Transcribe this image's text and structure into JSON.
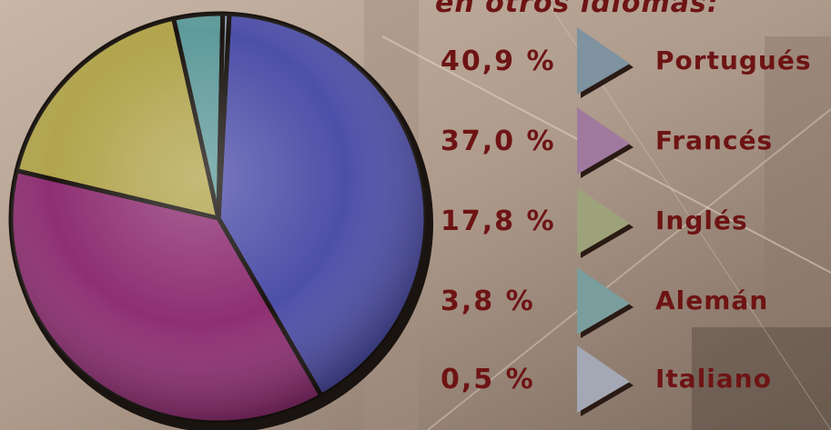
{
  "subtitle": "en otros idiomas:",
  "chart_data": {
    "type": "pie",
    "series": [
      {
        "name": "Portugués",
        "value": 40.9,
        "label": "40,9 %",
        "color": "#4e4fa8"
      },
      {
        "name": "Francés",
        "value": 37.0,
        "label": "37,0 %",
        "color": "#8e2f72"
      },
      {
        "name": "Inglés",
        "value": 17.8,
        "label": "17,8 %",
        "color": "#b1a44c"
      },
      {
        "name": "Alemán",
        "value": 3.8,
        "label": "3,8 %",
        "color": "#5f9a9a"
      },
      {
        "name": "Italiano",
        "value": 0.5,
        "label": "0,5 %",
        "color": "#8c9cab"
      }
    ],
    "legend_position": "right"
  },
  "legend": [
    {
      "pct": "40,9 %",
      "lang": "Portugués",
      "arrow_color": "#7e92a0"
    },
    {
      "pct": "37,0 %",
      "lang": "Francés",
      "arrow_color": "#a07a9e"
    },
    {
      "pct": "17,8 %",
      "lang": "Inglés",
      "arrow_color": "#9ea27a"
    },
    {
      "pct": "3,8 %",
      "lang": "Alemán",
      "arrow_color": "#7a9e9e"
    },
    {
      "pct": "0,5 %",
      "lang": "Italiano",
      "arrow_color": "#a4a8b4"
    }
  ]
}
